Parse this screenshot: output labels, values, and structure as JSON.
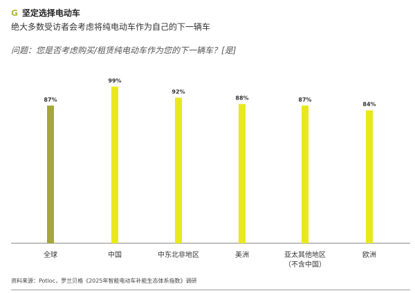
{
  "header": {
    "letter": "G",
    "title": "坚定选择电动车",
    "subtitle": "绝大多数受访者会考虑将纯电动车作为自己的下一辆车",
    "question": "问题：您是否考虑购买/租赁纯电动车作为您的下一辆车？[是]"
  },
  "chart_data": {
    "type": "bar",
    "categories": [
      "全球",
      "中国",
      "中东北非地区",
      "美洲",
      "亚太其他地区\n（不含中国）",
      "欧洲"
    ],
    "values": [
      87,
      99,
      92,
      88,
      87,
      84
    ],
    "data_labels": [
      "87%",
      "99%",
      "92%",
      "88%",
      "87%",
      "84%"
    ],
    "ylim": [
      0,
      100
    ],
    "grid": false,
    "colors": [
      "#a6a63a",
      "#e8e81c",
      "#e8e81c",
      "#e8e81c",
      "#e8e81c",
      "#e8e81c"
    ]
  },
  "footer": {
    "source": "资料来源：Potloc，罗兰贝格《2025年智能电动车补能生态体系指数》调研"
  }
}
